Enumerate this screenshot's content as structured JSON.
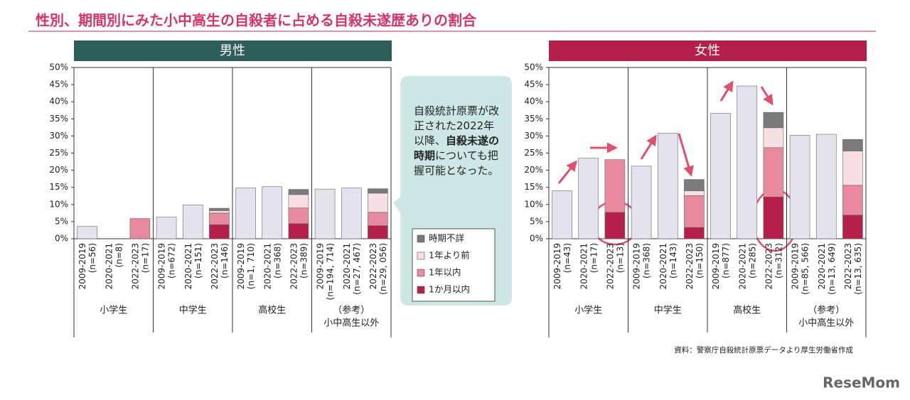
{
  "header": {
    "title": "性別、期間別にみた小中高生の自殺者に占める自殺未遂歴ありの割合"
  },
  "note": {
    "parts": [
      "自殺統計原票が改正された2022年以降、",
      "自殺未遂の時期",
      "についても把握可能となった。"
    ]
  },
  "source": "資料：警察庁自殺統計原票データより厚生労働省作成",
  "logo": "ReseMom",
  "chart_data": [
    {
      "type": "bar",
      "stacked": true,
      "title": "男性",
      "title_color": "#2e5e5a",
      "categories": [
        "2009-2019",
        "2020-2021",
        "2022-2023",
        "2009-2019",
        "2020-2021",
        "2022-2023",
        "2009-2019",
        "2020-2021",
        "2022-2023",
        "2009-2019",
        "2020-2021",
        "2022-2023"
      ],
      "n_labels": [
        "(n=56)",
        "(n=8)",
        "(n=17)",
        "(n=672)",
        "(n=151)",
        "(n=146)",
        "(n=1, 710)",
        "(n=368)",
        "(n=389)",
        "(n=194, 714)",
        "(n=27, 467)",
        "(n=29, 056)"
      ],
      "groups": [
        [
          "小学生"
        ],
        [
          "中学生"
        ],
        [
          "高校生"
        ],
        [
          "（参考）",
          "小中高生以外"
        ]
      ],
      "series": [
        {
          "color": "#e4e2ee",
          "values": [
            3.6,
            0,
            null,
            6.3,
            9.9,
            null,
            14.8,
            15.2,
            null,
            14.5,
            14.8,
            null
          ]
        },
        {
          "name": "1か月以内",
          "color": "#b5204a",
          "values": [
            null,
            null,
            0,
            null,
            null,
            4.1,
            null,
            null,
            4.4,
            null,
            null,
            3.8
          ]
        },
        {
          "name": "1年以内",
          "color": "#e8899e",
          "values": [
            null,
            null,
            5.9,
            null,
            null,
            3.4,
            null,
            null,
            4.6,
            null,
            null,
            3.9
          ]
        },
        {
          "name": "1年より前",
          "color": "#f8dfe6",
          "values": [
            null,
            null,
            0,
            null,
            null,
            0.7,
            null,
            null,
            3.9,
            null,
            null,
            5.6
          ]
        },
        {
          "name": "時期不詳",
          "color": "#7a7a7a",
          "values": [
            null,
            null,
            0,
            null,
            null,
            0.7,
            null,
            null,
            1.5,
            null,
            null,
            1.3
          ]
        }
      ],
      "ylim": [
        0,
        50
      ],
      "yticks": [
        {
          "value": 0,
          "label": "0%"
        },
        {
          "value": 5,
          "label": "5%"
        },
        {
          "value": 10,
          "label": "10%"
        },
        {
          "value": 15,
          "label": "15%"
        },
        {
          "value": 20,
          "label": "20%"
        },
        {
          "value": 25,
          "label": "25%"
        },
        {
          "value": 30,
          "label": "30%"
        },
        {
          "value": 35,
          "label": "35%"
        },
        {
          "value": 40,
          "label": "40%"
        },
        {
          "value": 45,
          "label": "45%"
        },
        {
          "value": 50,
          "label": "50%"
        }
      ]
    },
    {
      "type": "bar",
      "stacked": true,
      "title": "女性",
      "title_color": "#b5204a",
      "categories": [
        "2009-2019",
        "2020-2021",
        "2022-2023",
        "2009-2019",
        "2020-2021",
        "2022-2023",
        "2009-2019",
        "2020-2021",
        "2022-2023",
        "2009-2019",
        "2020-2021",
        "2022-2023"
      ],
      "n_labels": [
        "(n=43)",
        "(n=17)",
        "(n=13)",
        "(n=368)",
        "(n=143)",
        "(n=150)",
        "(n=877)",
        "(n=285)",
        "(n=312)",
        "(n=85, 566)",
        "(n=13, 649)",
        "(n=13, 635)"
      ],
      "groups": [
        [
          "小学生"
        ],
        [
          "中学生"
        ],
        [
          "高校生"
        ],
        [
          "（参考）",
          "小中高生以外"
        ]
      ],
      "series": [
        {
          "color": "#e4e2ee",
          "values": [
            14.0,
            23.5,
            null,
            21.2,
            30.8,
            null,
            36.6,
            44.6,
            null,
            30.2,
            30.5,
            null
          ]
        },
        {
          "color": "#b5204a",
          "values": [
            null,
            null,
            7.7,
            null,
            null,
            3.3,
            null,
            null,
            12.2,
            null,
            null,
            6.9
          ]
        },
        {
          "color": "#e8899e",
          "values": [
            null,
            null,
            15.4,
            null,
            null,
            9.3,
            null,
            null,
            14.4,
            null,
            null,
            8.7
          ]
        },
        {
          "color": "#f8dfe6",
          "values": [
            null,
            null,
            0,
            null,
            null,
            1.4,
            null,
            null,
            5.8,
            null,
            null,
            10.0
          ]
        },
        {
          "color": "#7a7a7a",
          "values": [
            null,
            null,
            0,
            null,
            null,
            3.3,
            null,
            null,
            4.5,
            null,
            null,
            3.4
          ]
        }
      ],
      "ylim": [
        0,
        50
      ],
      "yticks": [
        {
          "value": 0,
          "label": "0%"
        },
        {
          "value": 5,
          "label": "5%"
        },
        {
          "value": 10,
          "label": "10%"
        },
        {
          "value": 15,
          "label": "15%"
        },
        {
          "value": 20,
          "label": "20%"
        },
        {
          "value": 25,
          "label": "25%"
        },
        {
          "value": 30,
          "label": "30%"
        },
        {
          "value": 35,
          "label": "35%"
        },
        {
          "value": 40,
          "label": "40%"
        },
        {
          "value": 45,
          "label": "45%"
        },
        {
          "value": 50,
          "label": "50%"
        }
      ]
    }
  ]
}
